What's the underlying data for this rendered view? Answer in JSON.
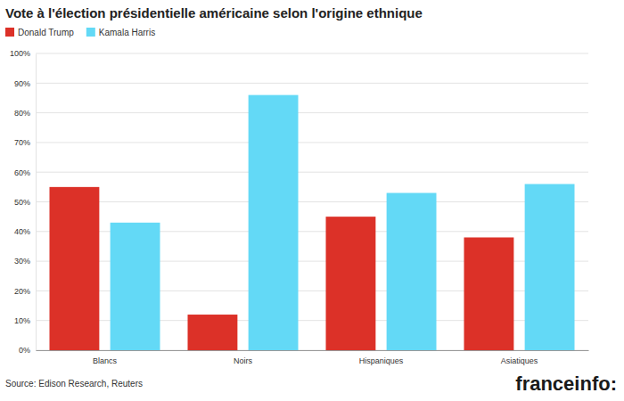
{
  "chart_data": {
    "type": "bar",
    "title": "Vote à l'élection présidentielle américaine selon l'origine ethnique",
    "categories": [
      "Blancs",
      "Noirs",
      "Hispaniques",
      "Asiatiques"
    ],
    "series": [
      {
        "name": "Donald Trump",
        "color": "#dc3128",
        "values": [
          55,
          12,
          45,
          38
        ]
      },
      {
        "name": "Kamala Harris",
        "color": "#63d9f6",
        "values": [
          43,
          86,
          53,
          56
        ]
      }
    ],
    "ylim": [
      0,
      100
    ],
    "yticks": [
      {
        "value": 0,
        "label": "0%"
      },
      {
        "value": 10,
        "label": "10%"
      },
      {
        "value": 20,
        "label": "20%"
      },
      {
        "value": 30,
        "label": "30%"
      },
      {
        "value": 40,
        "label": "40%"
      },
      {
        "value": 50,
        "label": "50%"
      },
      {
        "value": 60,
        "label": "60%"
      },
      {
        "value": 70,
        "label": "70%"
      },
      {
        "value": 80,
        "label": "80%"
      },
      {
        "value": 90,
        "label": "90%"
      },
      {
        "value": 100,
        "label": "100%"
      }
    ],
    "grid": true,
    "legend": "top-left",
    "data_labels": false,
    "source": "Source: Edison Research, Reuters",
    "logo": "franceinfo:"
  }
}
